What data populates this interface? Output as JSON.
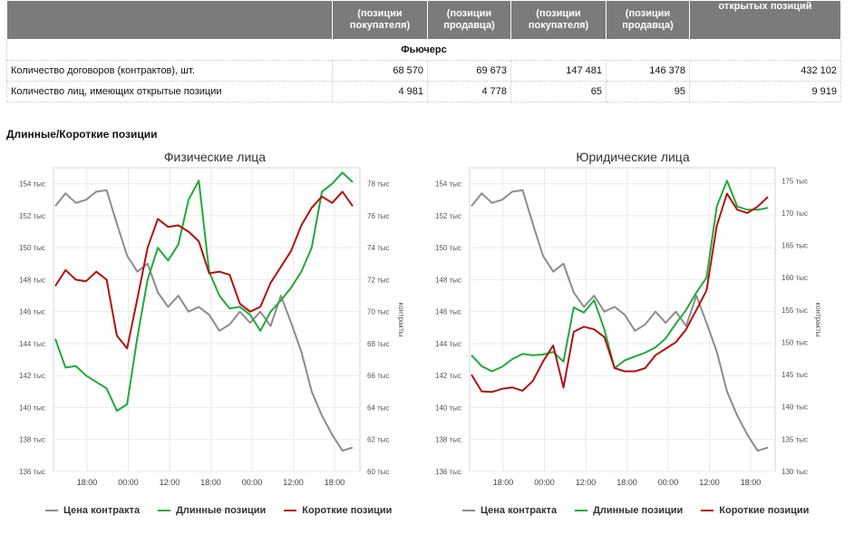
{
  "table": {
    "header": [
      "",
      "(позиции покупателя)",
      "(позиции продавца)",
      "(позиции покупателя)",
      "(позиции продавца)",
      "открытых позиций"
    ],
    "section": "Фьючерс",
    "rows": [
      {
        "label": "Количество договоров (контрактов), шт.",
        "values": [
          "68 570",
          "69 673",
          "147 481",
          "146 378",
          "432 102"
        ]
      },
      {
        "label": "Количество лиц, имеющих открытые позиции",
        "values": [
          "4 981",
          "4 778",
          "65",
          "95",
          "9 919"
        ]
      }
    ]
  },
  "section_title": "Длинные/Короткие позиции",
  "legend": {
    "price": "Цена контракта",
    "long": "Длинные позиции",
    "short": "Короткие позиции"
  },
  "colors": {
    "price": "#8c8c8c",
    "long": "#1faa3b",
    "short": "#b31010"
  },
  "chart_data": [
    {
      "type": "line",
      "title": "Физические лица",
      "left_axis": {
        "ticks": [
          136,
          138,
          140,
          142,
          144,
          146,
          148,
          150,
          152,
          154
        ],
        "labels": [
          "136 тыс",
          "138 тыс",
          "140 тыс",
          "142 тыс",
          "144 тыс",
          "146 тыс",
          "148 тыс",
          "150 тыс",
          "152 тыс",
          "154 тыс"
        ],
        "range": [
          136,
          155
        ]
      },
      "right_axis": {
        "ticks": [
          60,
          62,
          64,
          66,
          68,
          70,
          72,
          74,
          76,
          78
        ],
        "labels": [
          "60 тыс",
          "62 тыс",
          "64 тыс",
          "66 тыс",
          "68 тыс",
          "70 тыс",
          "72 тыс",
          "74 тыс",
          "76 тыс",
          "78 тыс"
        ],
        "range": [
          60,
          79
        ],
        "label": "контракты"
      },
      "x_labels": [
        "18:00",
        "00:00",
        "12:00",
        "18:00",
        "00:00",
        "12:00",
        "18:00"
      ],
      "series": [
        {
          "name": "Цена контракта",
          "axis": "left",
          "values": [
            152.6,
            153.4,
            152.8,
            153.0,
            153.5,
            153.6,
            151.5,
            149.5,
            148.5,
            149.0,
            147.2,
            146.3,
            147.0,
            146.0,
            146.3,
            145.8,
            144.8,
            145.2,
            146.0,
            145.3,
            146.0,
            145.1,
            147.0,
            145.3,
            143.5,
            141.0,
            139.5,
            138.3,
            137.3,
            137.5
          ]
        },
        {
          "name": "Длинные позиции",
          "axis": "right",
          "values": [
            68.3,
            66.5,
            66.6,
            66.0,
            65.6,
            65.2,
            63.8,
            64.2,
            68.4,
            72.0,
            74.0,
            73.2,
            74.2,
            77.0,
            78.2,
            72.5,
            71.0,
            70.2,
            70.3,
            69.8,
            68.8,
            70.0,
            70.7,
            71.5,
            72.5,
            74.0,
            77.5,
            78.0,
            78.7,
            78.1
          ]
        },
        {
          "name": "Короткие позиции",
          "axis": "right",
          "values": [
            71.6,
            72.6,
            72.0,
            71.9,
            72.5,
            72.0,
            68.5,
            67.7,
            70.8,
            74.0,
            75.8,
            75.3,
            75.4,
            75.0,
            74.4,
            72.4,
            72.5,
            72.3,
            70.5,
            70.0,
            70.3,
            71.8,
            72.8,
            73.8,
            75.4,
            76.5,
            77.2,
            76.8,
            77.5,
            76.6
          ]
        }
      ]
    },
    {
      "type": "line",
      "title": "Юридические лица",
      "left_axis": {
        "ticks": [
          136,
          138,
          140,
          142,
          144,
          146,
          148,
          150,
          152,
          154
        ],
        "labels": [
          "136 тыс",
          "138 тыс",
          "140 тыс",
          "142 тыс",
          "144 тыс",
          "146 тыс",
          "148 тыс",
          "150 тыс",
          "152 тыс",
          "154 тыс"
        ],
        "range": [
          136,
          155
        ]
      },
      "right_axis": {
        "ticks": [
          130,
          135,
          140,
          145,
          150,
          155,
          160,
          165,
          170,
          175
        ],
        "labels": [
          "130 тыс",
          "135 тыс",
          "140 тыс",
          "145 тыс",
          "150 тыс",
          "155 тыс",
          "160 тыс",
          "165 тыс",
          "170 тыс",
          "175 тыс"
        ],
        "range": [
          130,
          177
        ],
        "label": "контракты"
      },
      "x_labels": [
        "18:00",
        "00:00",
        "12:00",
        "18:00",
        "00:00",
        "12:00",
        "18:00"
      ],
      "series": [
        {
          "name": "Цена контракта",
          "axis": "left",
          "values": [
            152.6,
            153.4,
            152.8,
            153.0,
            153.5,
            153.6,
            151.5,
            149.5,
            148.5,
            149.0,
            147.2,
            146.3,
            147.0,
            146.0,
            146.3,
            145.8,
            144.8,
            145.2,
            146.0,
            145.3,
            146.0,
            145.1,
            147.0,
            145.3,
            143.5,
            141.0,
            139.5,
            138.3,
            137.3,
            137.5
          ]
        },
        {
          "name": "Длинные позиции",
          "axis": "right",
          "values": [
            148.0,
            146.3,
            145.5,
            146.2,
            147.4,
            148.2,
            148.0,
            148.1,
            148.5,
            147.0,
            155.4,
            154.6,
            156.5,
            152.0,
            146.0,
            147.2,
            147.8,
            148.4,
            149.2,
            150.6,
            152.9,
            155.0,
            157.7,
            160.0,
            171.0,
            175.0,
            171.0,
            170.5,
            170.5,
            170.8
          ]
        },
        {
          "name": "Короткие позиции",
          "axis": "right",
          "values": [
            145.0,
            142.4,
            142.3,
            142.8,
            143.0,
            142.5,
            144.0,
            147.0,
            149.5,
            143.0,
            151.6,
            152.4,
            152.0,
            150.8,
            146.0,
            145.5,
            145.5,
            146.0,
            148.0,
            149.0,
            150.0,
            152.0,
            155.0,
            158.0,
            168.0,
            173.0,
            170.5,
            170.0,
            171.0,
            172.5
          ]
        }
      ]
    }
  ]
}
